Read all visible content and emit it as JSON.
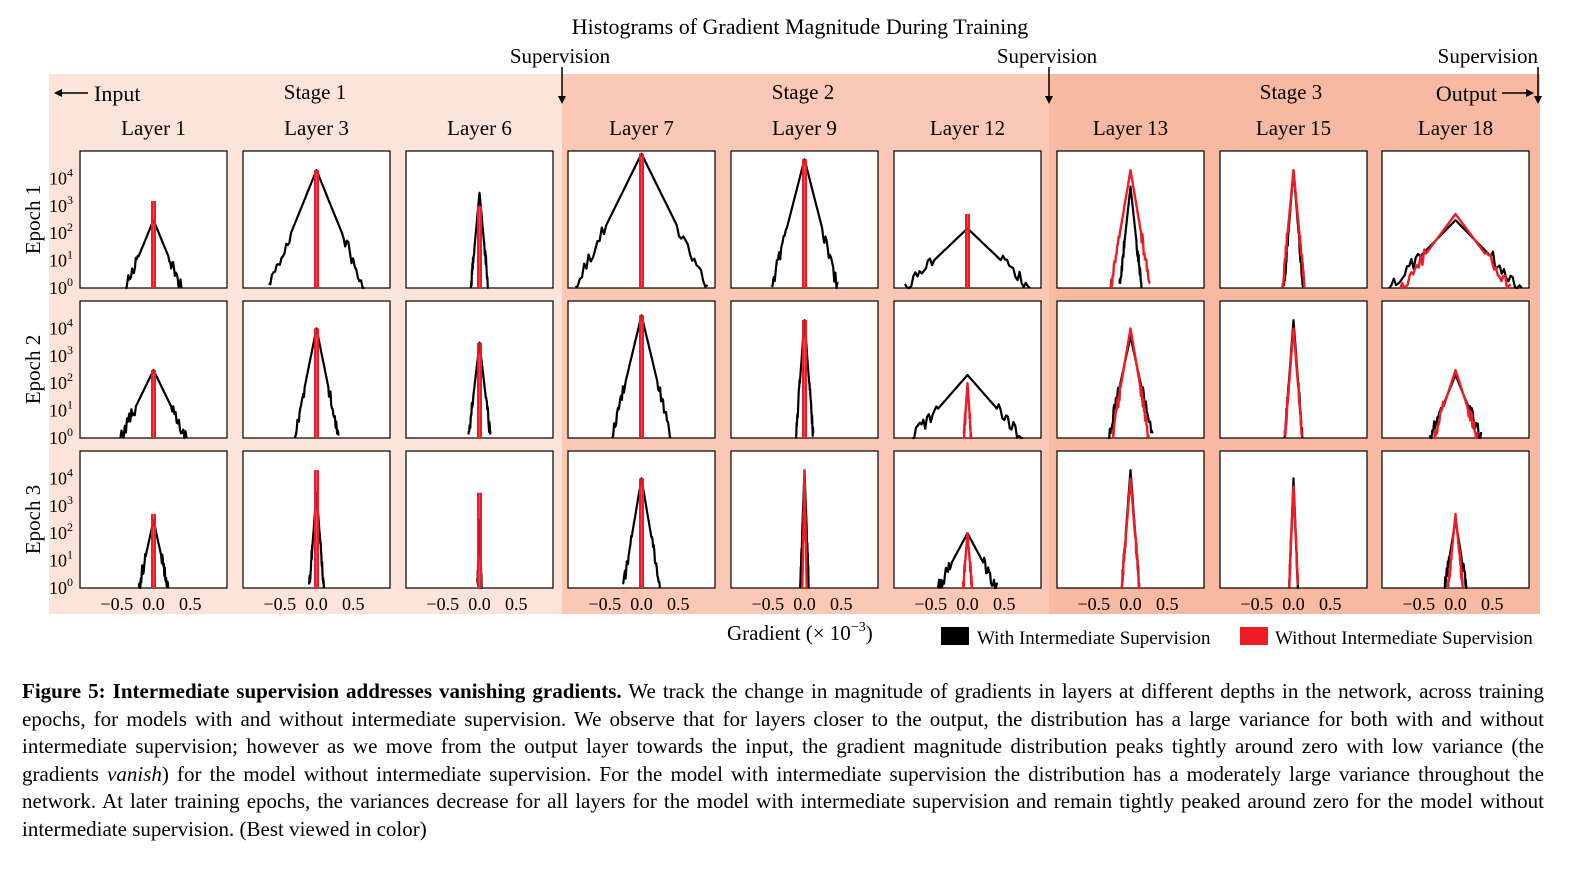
{
  "figure": {
    "title": "Histograms of Gradient Magnitude During Training",
    "supervision_label": "Supervision",
    "input_label": "Input",
    "output_label": "Output",
    "stage_labels": [
      "Stage 1",
      "Stage 2",
      "Stage 3"
    ],
    "stage_colors": [
      "#fde4da",
      "#fbc8b6",
      "#f7b9a2"
    ],
    "layer_labels": [
      "Layer 1",
      "Layer 3",
      "Layer 6",
      "Layer 7",
      "Layer 9",
      "Layer 12",
      "Layer 13",
      "Layer 15",
      "Layer 18"
    ],
    "epoch_labels": [
      "Epoch 1",
      "Epoch 2",
      "Epoch 3"
    ],
    "x_tick_labels": [
      "−0.5",
      "0.0",
      "0.5"
    ],
    "y_tick_base": "10",
    "y_tick_exponents": [
      "4",
      "3",
      "2",
      "1",
      "0"
    ],
    "xlabel_text": "Gradient (× 10",
    "xlabel_exp": "−3",
    "xlabel_close": ")",
    "legend": [
      {
        "label": "With Intermediate Supervision",
        "color": "#000000"
      },
      {
        "label": "Without Intermediate Supervision",
        "color": "#ee1c25"
      }
    ]
  },
  "chart_data": {
    "type": "line",
    "title": "Histograms of Gradient Magnitude During Training",
    "xlabel": "Gradient (× 10⁻³)",
    "ylabel": "",
    "x_range": [
      -1.0,
      1.0
    ],
    "x_ticks": [
      -0.5,
      0.0,
      0.5
    ],
    "y_scale": "log",
    "y_range": [
      1,
      100000
    ],
    "y_ticks": [
      1,
      10,
      100,
      1000,
      10000
    ],
    "legend_position": "bottom-right",
    "series_names": [
      "With Intermediate Supervision",
      "Without Intermediate Supervision"
    ],
    "rows": [
      "Epoch 1",
      "Epoch 2",
      "Epoch 3"
    ],
    "columns": [
      "Layer 1",
      "Layer 3",
      "Layer 6",
      "Layer 7",
      "Layer 9",
      "Layer 12",
      "Layer 13",
      "Layer 15",
      "Layer 18"
    ],
    "panels": [
      [
        {
          "with": {
            "peak": 300,
            "halfwidth": 0.38
          },
          "without": {
            "peak": 1500,
            "halfwidth": 0.002
          }
        },
        {
          "with": {
            "peak": 20000,
            "halfwidth": 0.65
          },
          "without": {
            "peak": 20000,
            "halfwidth": 0.002
          }
        },
        {
          "with": {
            "peak": 3000,
            "halfwidth": 0.12
          },
          "without": {
            "peak": 1000,
            "halfwidth": 0.002
          }
        },
        {
          "with": {
            "peak": 80000,
            "halfwidth": 0.9
          },
          "without": {
            "peak": 80000,
            "halfwidth": 0.002
          }
        },
        {
          "with": {
            "peak": 50000,
            "halfwidth": 0.45
          },
          "without": {
            "peak": 50000,
            "halfwidth": 0.002
          }
        },
        {
          "with": {
            "peak": 150,
            "halfwidth": 0.85
          },
          "without": {
            "peak": 500,
            "halfwidth": 0.003
          }
        },
        {
          "with": {
            "peak": 5000,
            "halfwidth": 0.15
          },
          "without": {
            "peak": 20000,
            "halfwidth": 0.27
          }
        },
        {
          "with": {
            "peak": 20000,
            "halfwidth": 0.13
          },
          "without": {
            "peak": 20000,
            "halfwidth": 0.15
          }
        },
        {
          "with": {
            "peak": 300,
            "halfwidth": 0.9
          },
          "without": {
            "peak": 500,
            "halfwidth": 0.75
          }
        }
      ],
      [
        {
          "with": {
            "peak": 300,
            "halfwidth": 0.45
          },
          "without": {
            "peak": 300,
            "halfwidth": 0.002
          }
        },
        {
          "with": {
            "peak": 10000,
            "halfwidth": 0.3
          },
          "without": {
            "peak": 10000,
            "halfwidth": 0.002
          }
        },
        {
          "with": {
            "peak": 3000,
            "halfwidth": 0.15
          },
          "without": {
            "peak": 3000,
            "halfwidth": 0.002
          }
        },
        {
          "with": {
            "peak": 30000,
            "halfwidth": 0.4
          },
          "without": {
            "peak": 30000,
            "halfwidth": 0.002
          }
        },
        {
          "with": {
            "peak": 20000,
            "halfwidth": 0.12
          },
          "without": {
            "peak": 20000,
            "halfwidth": 0.002
          }
        },
        {
          "with": {
            "peak": 200,
            "halfwidth": 0.75
          },
          "without": {
            "peak": 100,
            "halfwidth": 0.05
          }
        },
        {
          "with": {
            "peak": 5000,
            "halfwidth": 0.3
          },
          "without": {
            "peak": 10000,
            "halfwidth": 0.25
          }
        },
        {
          "with": {
            "peak": 20000,
            "halfwidth": 0.12
          },
          "without": {
            "peak": 10000,
            "halfwidth": 0.12
          }
        },
        {
          "with": {
            "peak": 200,
            "halfwidth": 0.35
          },
          "without": {
            "peak": 300,
            "halfwidth": 0.3
          }
        }
      ],
      [
        {
          "with": {
            "peak": 300,
            "halfwidth": 0.2
          },
          "without": {
            "peak": 500,
            "halfwidth": 0.002
          }
        },
        {
          "with": {
            "peak": 3000,
            "halfwidth": 0.1
          },
          "without": {
            "peak": 20000,
            "halfwidth": 0.002
          }
        },
        {
          "with": {
            "peak": 300,
            "halfwidth": 0.03
          },
          "without": {
            "peak": 3000,
            "halfwidth": 0.002
          }
        },
        {
          "with": {
            "peak": 10000,
            "halfwidth": 0.25
          },
          "without": {
            "peak": 10000,
            "halfwidth": 0.002
          }
        },
        {
          "with": {
            "peak": 20000,
            "halfwidth": 0.06
          },
          "without": {
            "peak": 20000,
            "halfwidth": 0.03
          }
        },
        {
          "with": {
            "peak": 100,
            "halfwidth": 0.4
          },
          "without": {
            "peak": 100,
            "halfwidth": 0.06
          }
        },
        {
          "with": {
            "peak": 20000,
            "halfwidth": 0.12
          },
          "without": {
            "peak": 10000,
            "halfwidth": 0.12
          }
        },
        {
          "with": {
            "peak": 10000,
            "halfwidth": 0.06
          },
          "without": {
            "peak": 5000,
            "halfwidth": 0.06
          }
        },
        {
          "with": {
            "peak": 300,
            "halfwidth": 0.15
          },
          "without": {
            "peak": 500,
            "halfwidth": 0.1
          }
        }
      ]
    ]
  },
  "caption": {
    "label": "Figure 5:",
    "bold_title": "Intermediate supervision addresses vanishing gradients.",
    "text1": "We track the change in magnitude of gradients in layers at different depths in the network, across training epochs, for models with and without intermediate supervision. We observe that for layers closer to the output, the distribution has a large variance for both with and without intermediate supervision; however as we move from the output layer towards the input, the gradient magnitude distribution peaks tightly around zero with low variance (the gradients",
    "italic_word": "vanish",
    "text2": ") for the model without intermediate supervision. For the model with intermediate supervision the distribution has a moderately large variance throughout the network. At later training epochs, the variances decrease for all layers for the model with intermediate supervision and remain tightly peaked around zero for the model without intermediate supervision. (Best viewed in color)"
  }
}
